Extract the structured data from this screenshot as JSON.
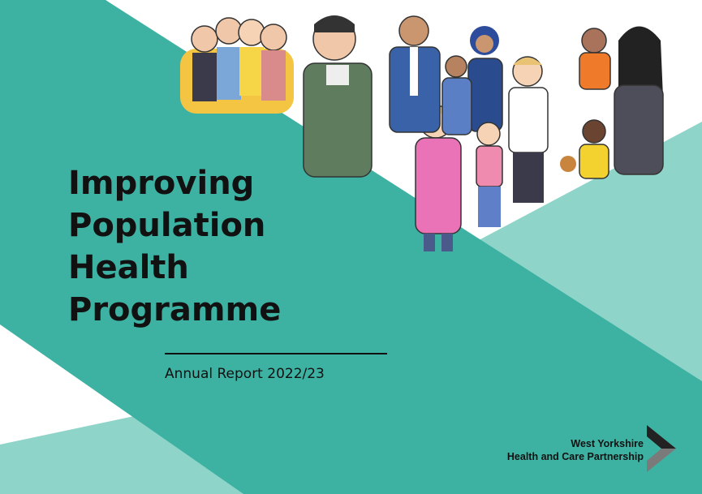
{
  "document": {
    "title_lines": [
      "Improving",
      "Population",
      "Health",
      "Programme"
    ],
    "subtitle": "Annual Report 2022/23"
  },
  "logo": {
    "line1": "West Yorkshire",
    "line2": "Health and Care Partnership",
    "icon": "chevron-icon"
  },
  "illustration": {
    "description_icon": "people-group-icon"
  },
  "colors": {
    "teal": "#3eb2a2",
    "light_teal": "#8fd4c9",
    "text": "#111111",
    "chevron_dark": "#222222",
    "chevron_gray": "#7a7a7a"
  }
}
